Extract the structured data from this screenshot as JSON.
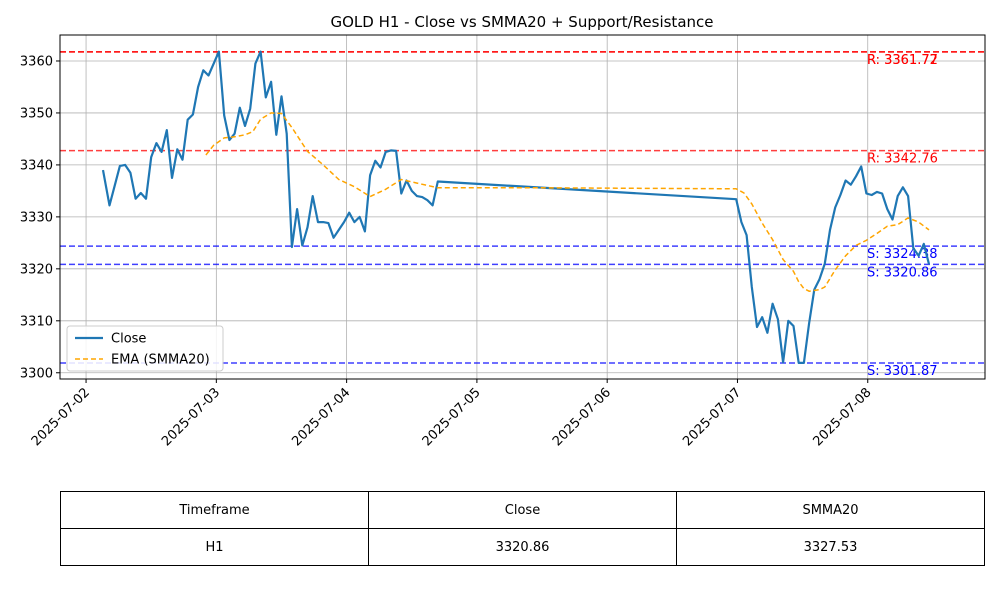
{
  "chart_data": {
    "type": "line",
    "title": "GOLD H1 - Close vs SMMA20 + Support/Resistance",
    "ylim": [
      3298.8,
      3365
    ],
    "yticks": [
      3300,
      3310,
      3320,
      3330,
      3340,
      3350,
      3360
    ],
    "x_range_days": [
      -0.2,
      6.9
    ],
    "xticks": [
      "2025-07-02",
      "2025-07-03",
      "2025-07-04",
      "2025-07-05",
      "2025-07-06",
      "2025-07-07",
      "2025-07-08"
    ],
    "grid": true,
    "legend_position": "lower-left",
    "series": [
      {
        "name": "Close",
        "color": "#1f77b4",
        "style": "solid",
        "points": [
          [
            0.13,
            3339.0
          ],
          [
            0.18,
            3332.2
          ],
          [
            0.22,
            3336.0
          ],
          [
            0.26,
            3339.8
          ],
          [
            0.3,
            3340.0
          ],
          [
            0.34,
            3338.5
          ],
          [
            0.38,
            3333.5
          ],
          [
            0.42,
            3334.6
          ],
          [
            0.46,
            3333.5
          ],
          [
            0.5,
            3341.5
          ],
          [
            0.54,
            3344.2
          ],
          [
            0.58,
            3342.5
          ],
          [
            0.62,
            3346.7
          ],
          [
            0.66,
            3337.5
          ],
          [
            0.7,
            3343.0
          ],
          [
            0.74,
            3341.0
          ],
          [
            0.78,
            3348.7
          ],
          [
            0.82,
            3349.7
          ],
          [
            0.86,
            3355.0
          ],
          [
            0.9,
            3358.2
          ],
          [
            0.94,
            3357.2
          ],
          [
            0.98,
            3359.5
          ],
          [
            1.02,
            3361.8
          ],
          [
            1.06,
            3349.5
          ],
          [
            1.1,
            3344.8
          ],
          [
            1.14,
            3346.0
          ],
          [
            1.18,
            3351.0
          ],
          [
            1.22,
            3347.5
          ],
          [
            1.26,
            3350.8
          ],
          [
            1.3,
            3359.5
          ],
          [
            1.34,
            3361.8
          ],
          [
            1.38,
            3353.0
          ],
          [
            1.42,
            3356.0
          ],
          [
            1.46,
            3345.8
          ],
          [
            1.5,
            3353.2
          ],
          [
            1.54,
            3346.0
          ],
          [
            1.58,
            3324.2
          ],
          [
            1.62,
            3331.5
          ],
          [
            1.66,
            3324.5
          ],
          [
            1.7,
            3328.0
          ],
          [
            1.74,
            3334.0
          ],
          [
            1.78,
            3329.0
          ],
          [
            1.82,
            3329.0
          ],
          [
            1.86,
            3328.8
          ],
          [
            1.9,
            3326.0
          ],
          [
            1.94,
            3327.5
          ],
          [
            1.98,
            3329.0
          ],
          [
            2.02,
            3330.8
          ],
          [
            2.06,
            3329.0
          ],
          [
            2.1,
            3330.0
          ],
          [
            2.14,
            3327.2
          ],
          [
            2.18,
            3338.0
          ],
          [
            2.22,
            3340.8
          ],
          [
            2.26,
            3339.5
          ],
          [
            2.3,
            3342.5
          ],
          [
            2.34,
            3342.8
          ],
          [
            2.38,
            3342.7
          ],
          [
            2.42,
            3334.5
          ],
          [
            2.46,
            3337.0
          ],
          [
            2.5,
            3335.0
          ],
          [
            2.54,
            3334.0
          ],
          [
            2.58,
            3333.8
          ],
          [
            2.62,
            3333.2
          ],
          [
            2.66,
            3332.2
          ],
          [
            2.7,
            3336.8
          ],
          [
            4.99,
            3333.4
          ],
          [
            5.03,
            3329.0
          ],
          [
            5.07,
            3326.5
          ],
          [
            5.11,
            3316.5
          ],
          [
            5.15,
            3308.8
          ],
          [
            5.19,
            3310.7
          ],
          [
            5.23,
            3307.7
          ],
          [
            5.27,
            3313.3
          ],
          [
            5.31,
            3310.3
          ],
          [
            5.35,
            3302.0
          ],
          [
            5.39,
            3310.0
          ],
          [
            5.43,
            3309.0
          ],
          [
            5.47,
            3301.9
          ],
          [
            5.51,
            3301.9
          ],
          [
            5.55,
            3309.5
          ],
          [
            5.59,
            3316.0
          ],
          [
            5.63,
            3318.0
          ],
          [
            5.67,
            3321.0
          ],
          [
            5.71,
            3327.5
          ],
          [
            5.75,
            3331.8
          ],
          [
            5.79,
            3334.2
          ],
          [
            5.83,
            3337.0
          ],
          [
            5.87,
            3336.2
          ],
          [
            5.91,
            3337.8
          ],
          [
            5.95,
            3339.7
          ],
          [
            5.99,
            3334.5
          ],
          [
            6.03,
            3334.2
          ],
          [
            6.07,
            3334.8
          ],
          [
            6.11,
            3334.5
          ],
          [
            6.15,
            3331.5
          ],
          [
            6.19,
            3329.5
          ],
          [
            6.23,
            3334.0
          ],
          [
            6.27,
            3335.7
          ],
          [
            6.31,
            3334.0
          ],
          [
            6.35,
            3324.0
          ],
          [
            6.39,
            3322.5
          ],
          [
            6.43,
            3324.8
          ],
          [
            6.47,
            3320.9
          ]
        ]
      },
      {
        "name": "EMA (SMMA20)",
        "color": "#ffa500",
        "style": "dashed",
        "points": [
          [
            0.92,
            3341.9
          ],
          [
            0.98,
            3343.8
          ],
          [
            1.06,
            3345.2
          ],
          [
            1.14,
            3345.4
          ],
          [
            1.22,
            3345.8
          ],
          [
            1.28,
            3346.4
          ],
          [
            1.34,
            3348.8
          ],
          [
            1.42,
            3350.0
          ],
          [
            1.5,
            3349.9
          ],
          [
            1.58,
            3347.2
          ],
          [
            1.7,
            3342.6
          ],
          [
            1.82,
            3340.0
          ],
          [
            1.94,
            3337.2
          ],
          [
            2.06,
            3335.8
          ],
          [
            2.18,
            3333.9
          ],
          [
            2.3,
            3335.3
          ],
          [
            2.42,
            3337.2
          ],
          [
            2.54,
            3336.5
          ],
          [
            2.7,
            3335.6
          ],
          [
            3.5,
            3335.6
          ],
          [
            4.99,
            3335.4
          ],
          [
            5.05,
            3334.6
          ],
          [
            5.11,
            3332.5
          ],
          [
            5.19,
            3328.8
          ],
          [
            5.27,
            3325.6
          ],
          [
            5.35,
            3321.8
          ],
          [
            5.43,
            3319.5
          ],
          [
            5.47,
            3317.5
          ],
          [
            5.51,
            3316.2
          ],
          [
            5.55,
            3315.7
          ],
          [
            5.63,
            3316.0
          ],
          [
            5.67,
            3316.5
          ],
          [
            5.75,
            3319.8
          ],
          [
            5.83,
            3322.5
          ],
          [
            5.91,
            3324.5
          ],
          [
            5.99,
            3325.5
          ],
          [
            6.07,
            3326.8
          ],
          [
            6.15,
            3328.2
          ],
          [
            6.23,
            3328.5
          ],
          [
            6.31,
            3329.8
          ],
          [
            6.39,
            3329.0
          ],
          [
            6.47,
            3327.5
          ]
        ]
      }
    ],
    "levels": [
      {
        "kind": "resistance",
        "value": 3361.77,
        "label": "R: 3361.77",
        "color": "#ff0000"
      },
      {
        "kind": "resistance",
        "value": 3361.72,
        "label": "R: 3361.72",
        "color": "#ff0000"
      },
      {
        "kind": "resistance",
        "value": 3342.76,
        "label": "R: 3342.76",
        "color": "#ff0000"
      },
      {
        "kind": "support",
        "value": 3324.38,
        "label": "S: 3324.38",
        "color": "#0000ff"
      },
      {
        "kind": "support",
        "value": 3320.86,
        "label": "S: 3320.86",
        "color": "#0000ff"
      },
      {
        "kind": "support",
        "value": 3301.87,
        "label": "S: 3301.87",
        "color": "#0000ff"
      }
    ]
  },
  "table": {
    "headers": [
      "Timeframe",
      "Close",
      "SMMA20"
    ],
    "rows": [
      [
        "H1",
        "3320.86",
        "3327.53"
      ]
    ]
  }
}
